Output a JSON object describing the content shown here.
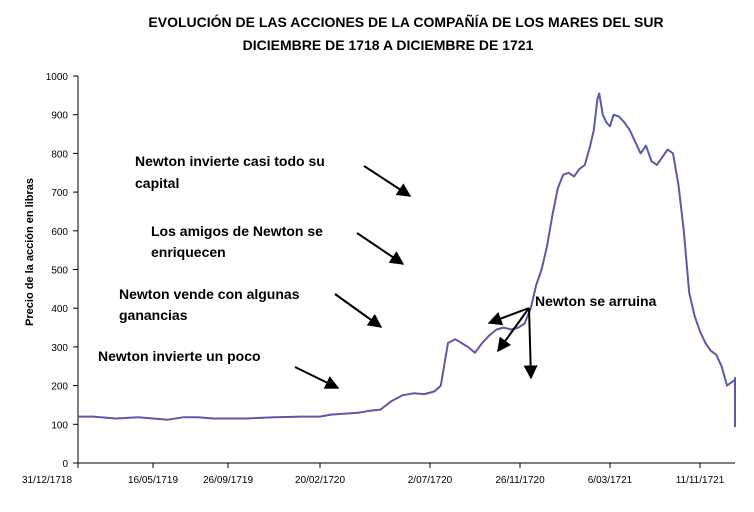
{
  "chart_data": {
    "type": "line",
    "title": [
      "EVOLUCIÓN DE LAS ACCIONES DE LA COMPAÑÍA DE LOS MARES DEL SUR",
      "DICIEMBRE DE 1718 A DICIEMBRE DE 1721"
    ],
    "ylabel": "Precio de la acción en libras",
    "xlabel": "",
    "ylim": [
      0,
      1000
    ],
    "yticks": [
      "0",
      "100",
      "200",
      "300",
      "400",
      "500",
      "600",
      "700",
      "800",
      "900",
      "1000"
    ],
    "xticks": [
      "31/12/1718",
      "16/05/1719",
      "26/09/1719",
      "20/02/1720",
      "2/07/1720",
      "26/11/1720",
      "6/03/1721",
      "11/11/1721"
    ],
    "series": [
      {
        "color": "#5a5aa8",
        "values": [
          [
            0.0,
            120
          ],
          [
            0.2,
            120
          ],
          [
            0.5,
            115
          ],
          [
            0.8,
            118
          ],
          [
            1.0,
            115
          ],
          [
            1.2,
            112
          ],
          [
            1.4,
            118
          ],
          [
            1.6,
            118
          ],
          [
            1.8,
            115
          ],
          [
            2.0,
            115
          ],
          [
            2.2,
            115
          ],
          [
            2.5,
            118
          ],
          [
            2.8,
            120
          ],
          [
            3.0,
            120
          ],
          [
            3.1,
            125
          ],
          [
            3.25,
            128
          ],
          [
            3.35,
            130
          ],
          [
            3.45,
            135
          ],
          [
            3.55,
            138
          ],
          [
            3.65,
            160
          ],
          [
            3.75,
            175
          ],
          [
            3.85,
            180
          ],
          [
            3.95,
            178
          ],
          [
            4.05,
            185
          ],
          [
            4.12,
            200
          ],
          [
            4.2,
            310
          ],
          [
            4.28,
            320
          ],
          [
            4.35,
            310
          ],
          [
            4.42,
            300
          ],
          [
            4.5,
            285
          ],
          [
            4.58,
            310
          ],
          [
            4.66,
            330
          ],
          [
            4.74,
            345
          ],
          [
            4.82,
            350
          ],
          [
            4.9,
            345
          ],
          [
            4.98,
            350
          ],
          [
            5.05,
            360
          ],
          [
            5.12,
            400
          ],
          [
            5.18,
            460
          ],
          [
            5.24,
            500
          ],
          [
            5.3,
            560
          ],
          [
            5.36,
            640
          ],
          [
            5.42,
            710
          ],
          [
            5.48,
            745
          ],
          [
            5.54,
            750
          ],
          [
            5.6,
            740
          ],
          [
            5.66,
            760
          ],
          [
            5.72,
            770
          ],
          [
            5.78,
            820
          ],
          [
            5.82,
            860
          ],
          [
            5.86,
            940
          ],
          [
            5.88,
            955
          ],
          [
            5.92,
            900
          ],
          [
            5.96,
            880
          ],
          [
            6.0,
            870
          ],
          [
            6.04,
            900
          ],
          [
            6.1,
            895
          ],
          [
            6.16,
            880
          ],
          [
            6.22,
            860
          ],
          [
            6.28,
            830
          ],
          [
            6.34,
            800
          ],
          [
            6.4,
            820
          ],
          [
            6.46,
            780
          ],
          [
            6.52,
            770
          ],
          [
            6.58,
            790
          ],
          [
            6.64,
            810
          ],
          [
            6.7,
            800
          ],
          [
            6.76,
            720
          ],
          [
            6.82,
            600
          ],
          [
            6.88,
            440
          ],
          [
            6.94,
            380
          ],
          [
            7.0,
            340
          ],
          [
            7.06,
            310
          ],
          [
            7.12,
            290
          ],
          [
            7.18,
            280
          ],
          [
            7.24,
            250
          ],
          [
            7.3,
            200
          ],
          [
            7.36,
            210
          ],
          [
            7.42,
            215
          ],
          [
            7.5,
            210
          ],
          [
            7.58,
            220
          ],
          [
            7.66,
            210
          ],
          [
            7.74,
            200
          ],
          [
            7.82,
            195
          ],
          [
            7.9,
            200
          ],
          [
            7.98,
            190
          ],
          [
            8.04,
            180
          ],
          [
            8.1,
            150
          ],
          [
            8.16,
            145
          ],
          [
            8.22,
            155
          ],
          [
            8.3,
            150
          ],
          [
            8.38,
            160
          ],
          [
            8.46,
            200
          ],
          [
            8.54,
            200
          ],
          [
            8.62,
            185
          ],
          [
            8.7,
            145
          ],
          [
            8.8,
            140
          ],
          [
            8.9,
            140
          ],
          [
            9.0,
            160
          ],
          [
            9.1,
            150
          ],
          [
            9.2,
            140
          ],
          [
            9.35,
            140
          ],
          [
            9.5,
            130
          ],
          [
            9.65,
            130
          ],
          [
            9.8,
            120
          ],
          [
            9.95,
            118
          ],
          [
            10.1,
            125
          ],
          [
            10.25,
            135
          ],
          [
            10.4,
            145
          ],
          [
            10.55,
            150
          ],
          [
            10.7,
            148
          ],
          [
            10.85,
            150
          ],
          [
            11.0,
            145
          ],
          [
            11.15,
            140
          ],
          [
            11.25,
            140
          ],
          [
            11.32,
            110
          ],
          [
            11.4,
            95
          ],
          [
            11.5,
            98
          ],
          [
            11.6,
            95
          ],
          [
            11.7,
            95
          ],
          [
            11.85,
            98
          ],
          [
            12.0,
            95
          ],
          [
            12.2,
            98
          ],
          [
            12.4,
            96
          ],
          [
            12.6,
            97
          ],
          [
            12.75,
            98
          ]
        ]
      }
    ],
    "annotations": [
      {
        "lines": [
          "Newton invierte un poco"
        ]
      },
      {
        "lines": [
          "Newton vende con algunas",
          "ganancias"
        ]
      },
      {
        "lines": [
          "Los amigos de Newton se",
          "enriquecen"
        ]
      },
      {
        "lines": [
          "Newton invierte casi todo su",
          "capital"
        ]
      },
      {
        "lines": [
          "Newton se arruina"
        ]
      }
    ]
  }
}
